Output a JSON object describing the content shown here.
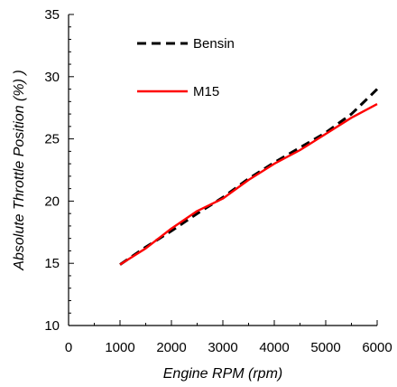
{
  "chart_data": {
    "type": "line",
    "xlabel": "Engine RPM (rpm)",
    "ylabel": "Absolute Throttle Position (%) )",
    "xlim": [
      0,
      6000
    ],
    "ylim": [
      10,
      35
    ],
    "x_ticks": [
      "0",
      "1000",
      "2000",
      "3000",
      "4000",
      "5000",
      "6000"
    ],
    "y_ticks": [
      "10",
      "15",
      "20",
      "25",
      "30",
      "35"
    ],
    "grid": false,
    "legend_position": "top-left",
    "series": [
      {
        "name": "Bensin",
        "color": "#000000",
        "style": "dashed",
        "x": [
          1000,
          1500,
          2000,
          2500,
          3000,
          3500,
          4000,
          4500,
          5000,
          5500,
          6000
        ],
        "y": [
          14.9,
          16.3,
          17.6,
          19.0,
          20.3,
          21.8,
          23.1,
          24.3,
          25.5,
          27.0,
          29.0
        ]
      },
      {
        "name": "M15",
        "color": "#ff0000",
        "style": "solid",
        "x": [
          1000,
          1500,
          2000,
          2500,
          3000,
          3500,
          4000,
          4500,
          5000,
          5500,
          6000
        ],
        "y": [
          14.9,
          16.2,
          17.8,
          19.2,
          20.2,
          21.7,
          23.0,
          24.1,
          25.4,
          26.7,
          27.8
        ]
      }
    ]
  }
}
